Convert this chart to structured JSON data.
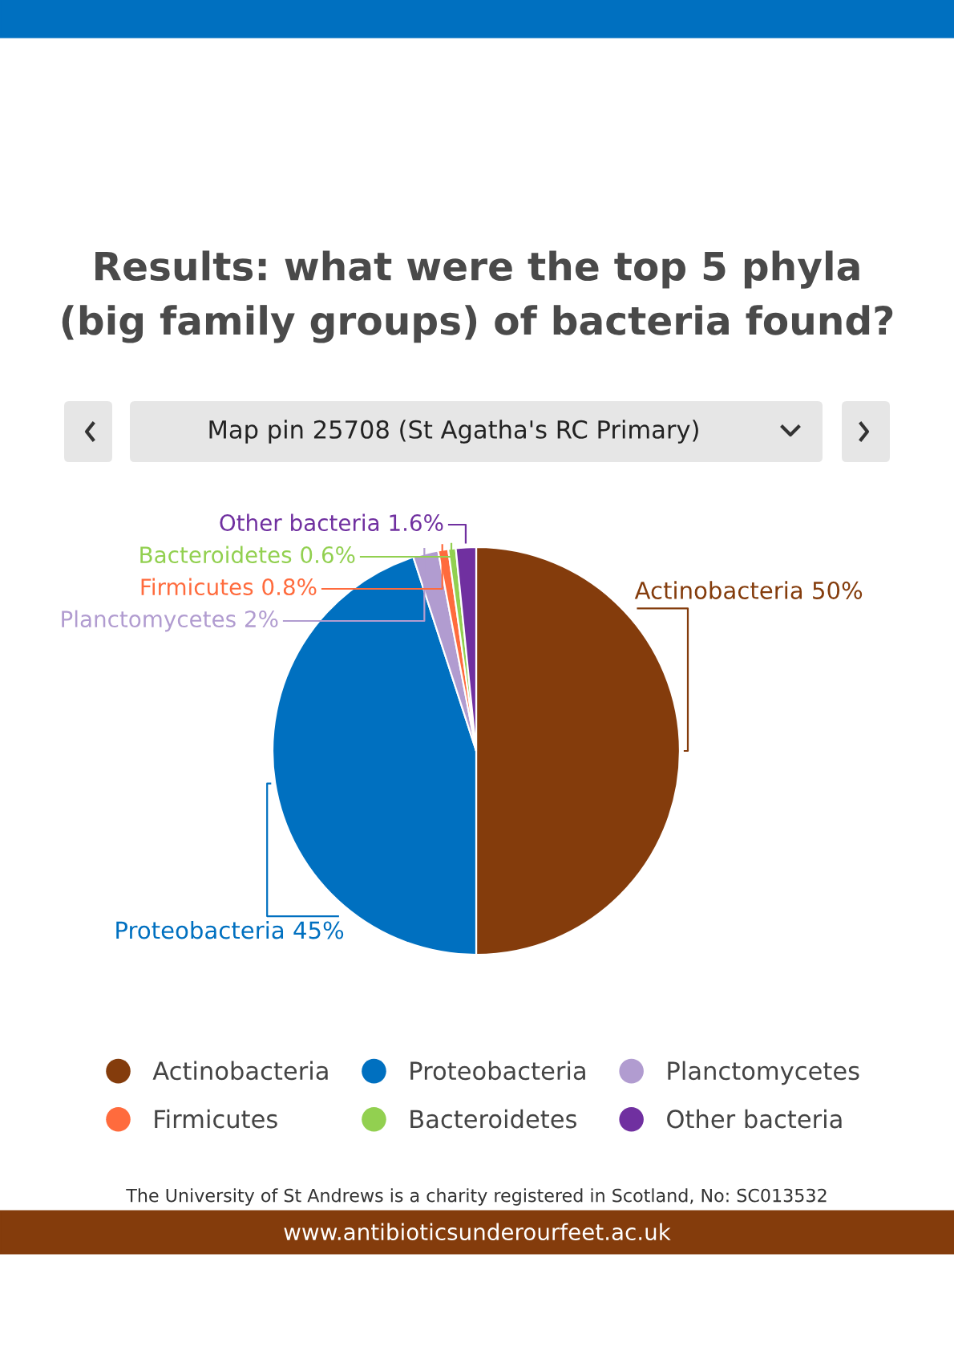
{
  "chart_data": {
    "type": "pie",
    "title": "Results: what were the top 5 phyla\n(big family groups) of bacteria found?",
    "subtitle": "Map pin 25708 (St Agatha's RC Primary)",
    "categories": [
      "Actinobacteria",
      "Proteobacteria",
      "Planctomycetes",
      "Firmicutes",
      "Bacteroidetes",
      "Other bacteria"
    ],
    "values": [
      50,
      45,
      2,
      0.8,
      0.6,
      1.6
    ],
    "value_labels": [
      "50%",
      "45%",
      "2%",
      "0.8%",
      "0.6%",
      "1.6%"
    ],
    "colors": [
      "#843c0c",
      "#0070c0",
      "#b19cd0",
      "#ff6b3d",
      "#92d050",
      "#7030a0"
    ],
    "legend": "bottom",
    "annotations": [
      "The University of St Andrews is a charity registered in Scotland, No: SC013532",
      "www.antibioticsunderourfeet.ac.uk"
    ]
  }
}
